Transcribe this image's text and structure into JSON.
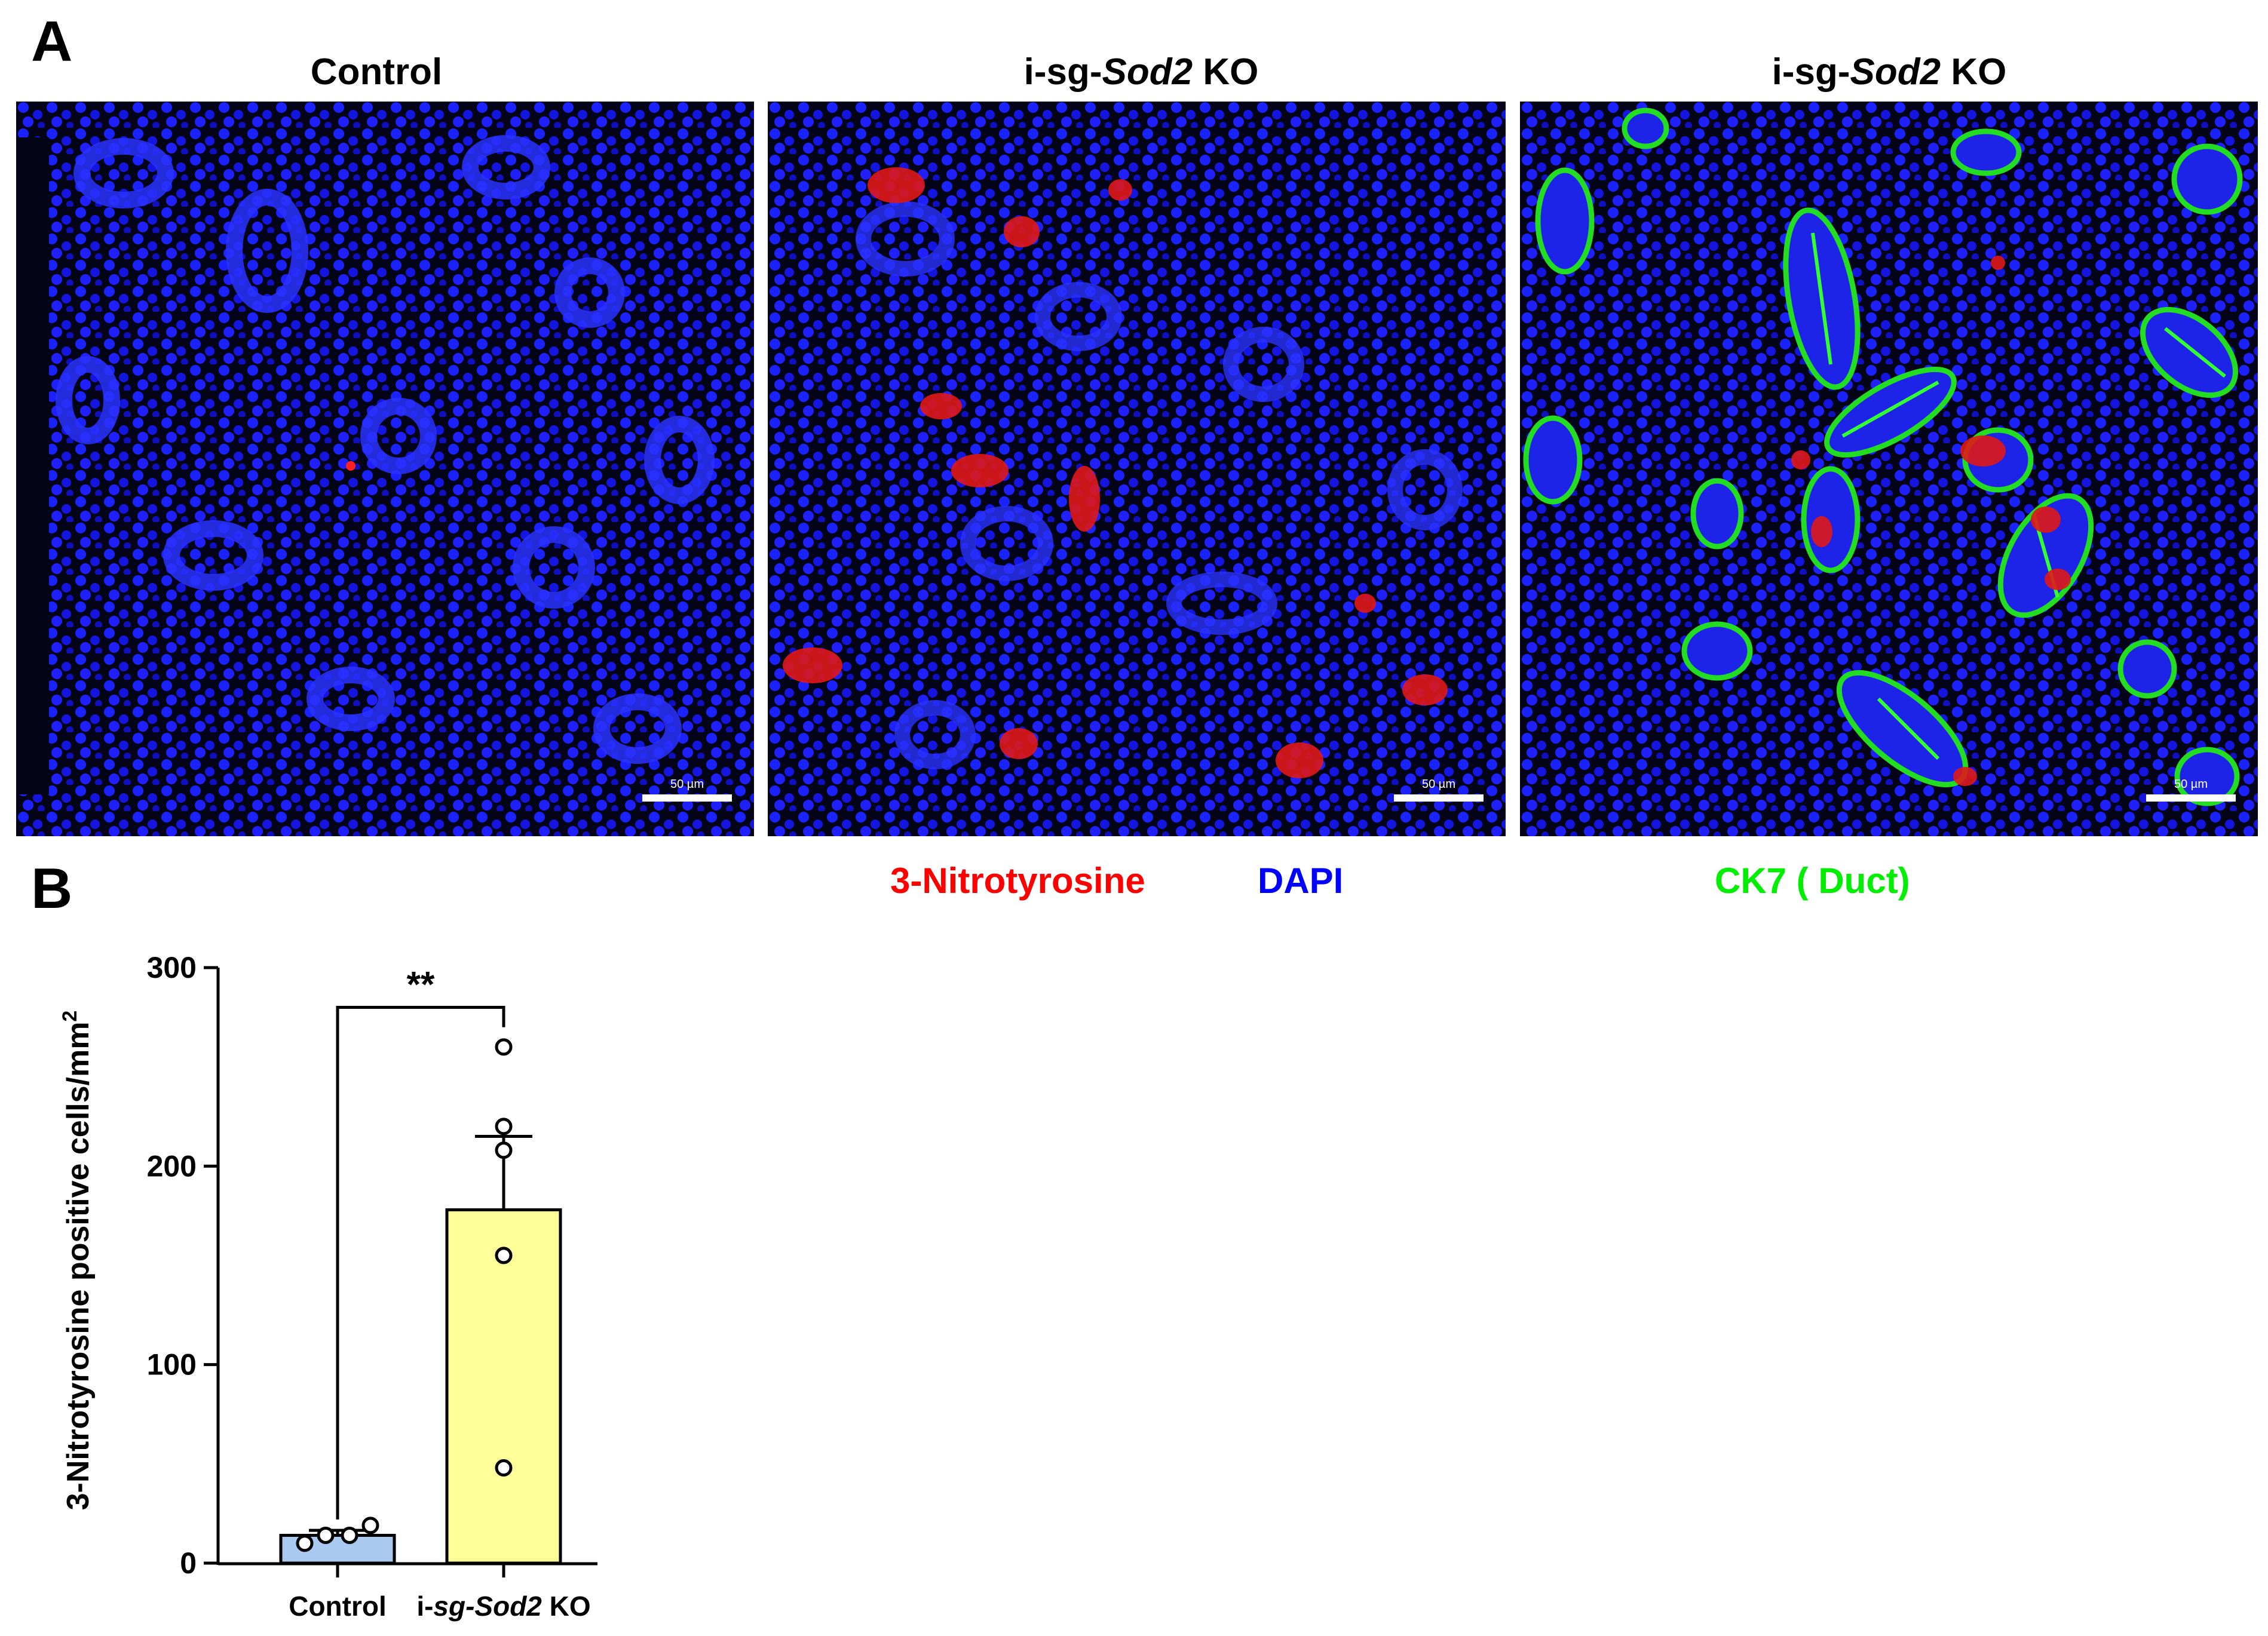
{
  "figure": {
    "panel_a_letter": "A",
    "panel_b_letter": "B",
    "columns": [
      {
        "title_plain": "Control",
        "title_italic": "",
        "title_suffix": ""
      },
      {
        "title_plain": "i-sg-",
        "title_italic": "Sod2",
        "title_suffix": " KO"
      },
      {
        "title_plain": "i-sg-",
        "title_italic": "Sod2",
        "title_suffix": " KO"
      }
    ],
    "scale_bar_label": "50 µm",
    "legend": {
      "nitrotyrosine": "3-Nitrotyrosine",
      "dapi": "DAPI",
      "ck7": "CK7 ( Duct)"
    },
    "colors": {
      "nitrotyrosine": "#ff0000",
      "dapi": "#0000ff",
      "ck7": "#00ee00",
      "control_bar": "#a9c9f0",
      "ko_bar": "#ffff99"
    }
  },
  "chart_data": {
    "type": "bar",
    "categories": [
      "Control",
      "i-sg-Sod2 KO"
    ],
    "category_labels": [
      {
        "plain": "Control",
        "italic": "",
        "suffix": ""
      },
      {
        "plain": "i-",
        "italic": "sg-Sod2",
        "suffix": " KO"
      }
    ],
    "values": [
      14,
      178
    ],
    "errors": [
      2.5,
      37
    ],
    "points": [
      [
        10,
        14,
        14,
        19
      ],
      [
        48,
        155,
        220,
        208,
        260
      ]
    ],
    "ylabel_main": "3-Nitrotyrosine positive cells/mm",
    "ylabel_sup": "2",
    "ylim": [
      0,
      300
    ],
    "yticks": [
      0,
      100,
      200,
      300
    ],
    "significance": "**",
    "bar_colors": [
      "#a9c9f0",
      "#ffff99"
    ]
  }
}
